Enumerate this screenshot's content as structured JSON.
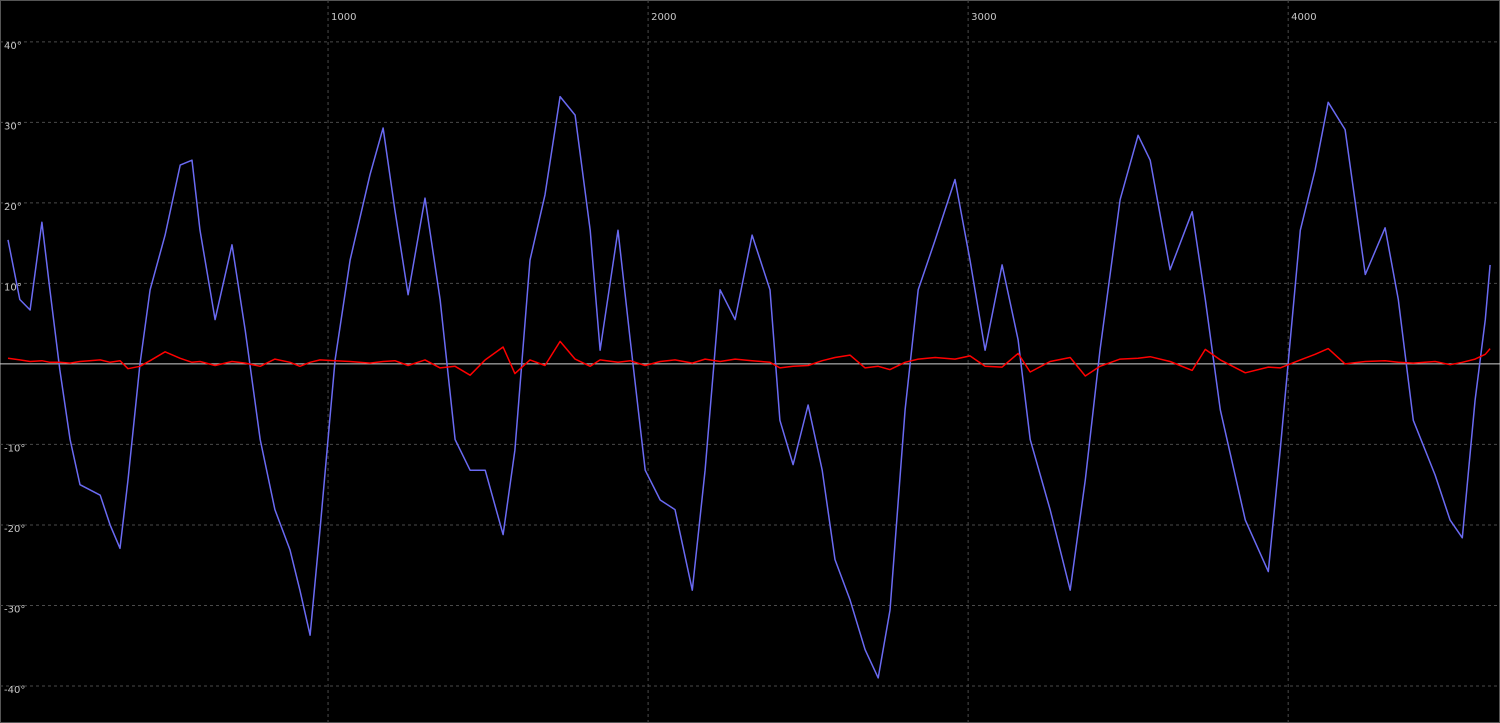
{
  "chart_data": {
    "type": "line",
    "x": [
      0,
      37,
      69,
      106,
      131,
      162,
      194,
      225,
      288,
      319,
      350,
      375,
      412,
      444,
      491,
      538,
      575,
      600,
      647,
      700,
      741,
      788,
      834,
      881,
      912,
      944,
      975,
      1022,
      1069,
      1131,
      1172,
      1209,
      1250,
      1303,
      1350,
      1397,
      1444,
      1491,
      1547,
      1584,
      1631,
      1678,
      1725,
      1772,
      1819,
      1850,
      1906,
      1944,
      1991,
      2038,
      2084,
      2138,
      2178,
      2225,
      2272,
      2325,
      2381,
      2412,
      2453,
      2500,
      2544,
      2584,
      2631,
      2678,
      2719,
      2756,
      2803,
      2844,
      2897,
      2959,
      3006,
      3053,
      3106,
      3156,
      3194,
      3256,
      3319,
      3366,
      3412,
      3475,
      3531,
      3569,
      3631,
      3700,
      3741,
      3788,
      3866,
      3938,
      3975,
      4038,
      4084,
      4125,
      4178,
      4241,
      4303,
      4344,
      4391,
      4459,
      4506,
      4544,
      4584,
      4616,
      4631
    ],
    "series": [
      {
        "color": "#6a6af2",
        "values": [
          15.4,
          8,
          6.7,
          17.6,
          9.2,
          -0.7,
          -9.4,
          -15,
          -16.3,
          -20,
          -22.9,
          -14.4,
          -0.1,
          9.2,
          16,
          24.7,
          25.3,
          16.6,
          5.5,
          14.8,
          4.2,
          -9.4,
          -18.1,
          -23.1,
          -28.1,
          -33.7,
          -20.6,
          0.5,
          12.9,
          23.5,
          29.3,
          19.1,
          8.6,
          20.6,
          8,
          -9.4,
          -13.2,
          -13.2,
          -21.2,
          -10.7,
          12.9,
          21,
          33.2,
          30.9,
          16.6,
          1.7,
          16.6,
          3,
          -13.2,
          -16.9,
          -18.1,
          -28.1,
          -13.2,
          9.2,
          5.5,
          16,
          9.2,
          -7,
          -12.5,
          -5.1,
          -13.2,
          -24.3,
          -29.3,
          -35.5,
          -39,
          -30.6,
          -5.7,
          9.2,
          15.4,
          22.9,
          12.9,
          1.7,
          12.3,
          3,
          -9.4,
          -18.1,
          -28.1,
          -14.4,
          1.7,
          20.4,
          28.4,
          25.3,
          11.7,
          18.9,
          8,
          -5.7,
          -19.4,
          -25.8,
          -10.7,
          16.6,
          24.1,
          32.5,
          29.1,
          11.1,
          16.9,
          8,
          -7,
          -13.8,
          -19.4,
          -21.6,
          -4.5,
          5.5,
          12.3
        ]
      },
      {
        "color": "#ff0000",
        "values": [
          0.7,
          0.5,
          0.3,
          0.4,
          0.2,
          0.2,
          0.1,
          0.3,
          0.5,
          0.2,
          0.4,
          -0.6,
          -0.3,
          0.4,
          1.5,
          0.7,
          0.2,
          0.3,
          -0.2,
          0.3,
          0.1,
          -0.3,
          0.6,
          0.2,
          -0.3,
          0.2,
          0.5,
          0.4,
          0.3,
          0.1,
          0.3,
          0.4,
          -0.2,
          0.5,
          -0.5,
          -0.3,
          -1.4,
          0.5,
          2.1,
          -1.2,
          0.5,
          -0.2,
          2.8,
          0.6,
          -0.3,
          0.5,
          0.2,
          0.4,
          -0.2,
          0.3,
          0.5,
          0.1,
          0.6,
          0.3,
          0.6,
          0.4,
          0.2,
          -0.5,
          -0.3,
          -0.2,
          0.4,
          0.8,
          1.1,
          -0.5,
          -0.3,
          -0.7,
          0.2,
          0.6,
          0.8,
          0.6,
          1,
          -0.3,
          -0.4,
          1.3,
          -1,
          0.3,
          0.8,
          -1.5,
          -0.3,
          0.6,
          0.7,
          0.9,
          0.3,
          -0.8,
          1.8,
          0.5,
          -1.1,
          -0.4,
          -0.5,
          0.5,
          1.2,
          1.9,
          0,
          0.3,
          0.4,
          0.2,
          0.1,
          0.3,
          -0.1,
          0.2,
          0.6,
          1.2,
          1.9
        ]
      }
    ],
    "xlim": [
      0,
      4640
    ],
    "xticks": [
      1000,
      2000,
      3000,
      4000
    ],
    "ylim": [
      -44.6,
      45.2
    ],
    "yticks": [
      {
        "value": 40,
        "label": "40°"
      },
      {
        "value": 30,
        "label": "30°"
      },
      {
        "value": 20,
        "label": "20°"
      },
      {
        "value": 10,
        "label": "10°"
      },
      {
        "value": -10,
        "label": "-10°"
      },
      {
        "value": -20,
        "label": "-20°"
      },
      {
        "value": -30,
        "label": "-30°"
      },
      {
        "value": -40,
        "label": "-40°"
      }
    ],
    "grid": true,
    "zero_line": true
  }
}
